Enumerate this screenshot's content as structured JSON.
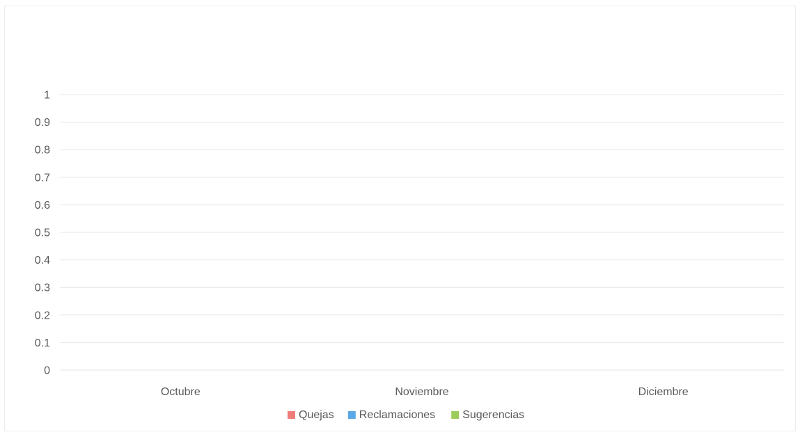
{
  "chart_data": {
    "type": "bar",
    "title": "",
    "xlabel": "",
    "ylabel": "",
    "categories": [
      "Octubre",
      "Noviembre",
      "Diciembre"
    ],
    "series": [
      {
        "name": "Quejas",
        "values": [
          0,
          0,
          0
        ],
        "color": "#f07b7b"
      },
      {
        "name": "Reclamaciones",
        "values": [
          0,
          0,
          0
        ],
        "color": "#5aa9e6"
      },
      {
        "name": "Sugerencias",
        "values": [
          0,
          0,
          0
        ],
        "color": "#9ccc5a"
      }
    ],
    "ylim": [
      0,
      1
    ],
    "yticks": [
      "0",
      "0.1",
      "0.2",
      "0.3",
      "0.4",
      "0.5",
      "0.6",
      "0.7",
      "0.8",
      "0.9",
      "1"
    ],
    "grid": true,
    "legend_position": "bottom",
    "gridline_color": "#e4e4e4"
  }
}
